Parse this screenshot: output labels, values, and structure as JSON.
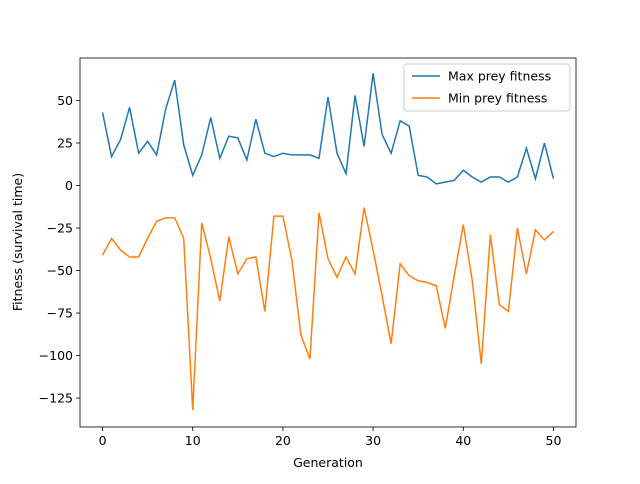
{
  "chart_data": {
    "type": "line",
    "xlabel": "Generation",
    "ylabel": "Fitness (survival time)",
    "x": [
      0,
      1,
      2,
      3,
      4,
      5,
      6,
      7,
      8,
      9,
      10,
      11,
      12,
      13,
      14,
      15,
      16,
      17,
      18,
      19,
      20,
      21,
      22,
      23,
      24,
      25,
      26,
      27,
      28,
      29,
      30,
      31,
      32,
      33,
      34,
      35,
      36,
      37,
      38,
      39,
      40,
      41,
      42,
      43,
      44,
      45,
      46,
      47,
      48,
      49,
      50
    ],
    "series": [
      {
        "name": "Max prey fitness",
        "color": "#1f77b4",
        "values": [
          43,
          17,
          27,
          46,
          19,
          26,
          18,
          45,
          62,
          24,
          6,
          18,
          40,
          16,
          29,
          28,
          15,
          39,
          19,
          17,
          19,
          18,
          18,
          18,
          16,
          52,
          19,
          7,
          53,
          23,
          66,
          30,
          19,
          38,
          35,
          6,
          5,
          1,
          2,
          3,
          9,
          5,
          2,
          5,
          5,
          2,
          5,
          22,
          4,
          25,
          4
        ]
      },
      {
        "name": "Min prey fitness",
        "color": "#ff7f0e",
        "values": [
          -41,
          -31,
          -38,
          -42,
          -42,
          -31,
          -21,
          -19,
          -19,
          -31,
          -132,
          -22,
          -43,
          -68,
          -30,
          -52,
          -43,
          -42,
          -74,
          -18,
          -18,
          -44,
          -88,
          -102,
          -16,
          -43,
          -54,
          -42,
          -52,
          -13,
          -38,
          -65,
          -93,
          -46,
          -53,
          -56,
          -57,
          -59,
          -84,
          -53,
          -23,
          -56,
          -105,
          -29,
          -70,
          -74,
          -25,
          -52,
          -26,
          -32,
          -27
        ]
      }
    ],
    "xlim": [
      -2.5,
      52.5
    ],
    "xticks": [
      0,
      10,
      20,
      30,
      40,
      50
    ],
    "ylim": [
      -142,
      75
    ],
    "yticks": [
      {
        "value": -125,
        "label": "−125"
      },
      {
        "value": -100,
        "label": "−100"
      },
      {
        "value": -75,
        "label": "−75"
      },
      {
        "value": -50,
        "label": "−50"
      },
      {
        "value": -25,
        "label": "−25"
      },
      0,
      25,
      50
    ],
    "legend": "upper right",
    "grid": false
  }
}
